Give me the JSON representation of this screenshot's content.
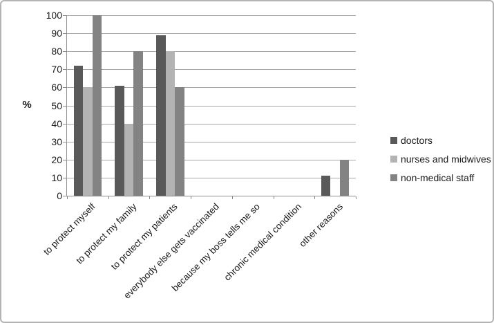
{
  "frame": {
    "background": "#ffffff",
    "border_color": "#b3b3b3"
  },
  "chart_data": {
    "type": "bar",
    "title": "",
    "categories": [
      "to protect myself",
      "to protect my family",
      "to protect my patients",
      "everybody else gets vaccinated",
      "because my boss tells me so",
      "chronic medical condition",
      "other reasons"
    ],
    "series": [
      {
        "name": "doctors",
        "color": "#595959",
        "values": [
          72,
          61,
          89,
          0,
          0,
          0,
          11
        ]
      },
      {
        "name": "nurses and midwives",
        "color": "#b3b3b3",
        "values": [
          60,
          40,
          80,
          0,
          0,
          0,
          0
        ]
      },
      {
        "name": "non-medical staff",
        "color": "#838383",
        "values": [
          100,
          80,
          60,
          0,
          0,
          0,
          20
        ]
      }
    ],
    "xlabel": "",
    "ylabel": "%",
    "ylim": [
      0,
      100
    ],
    "ytick_step": 10,
    "yticks": [
      "0",
      "10",
      "20",
      "30",
      "40",
      "50",
      "60",
      "70",
      "80",
      "90",
      "100"
    ],
    "grid": "horizontal",
    "gridline_color": "#a6a6a6",
    "axis_color": "#8c8c8c",
    "text_color": "#1a1a1a",
    "legend_position": "right"
  }
}
